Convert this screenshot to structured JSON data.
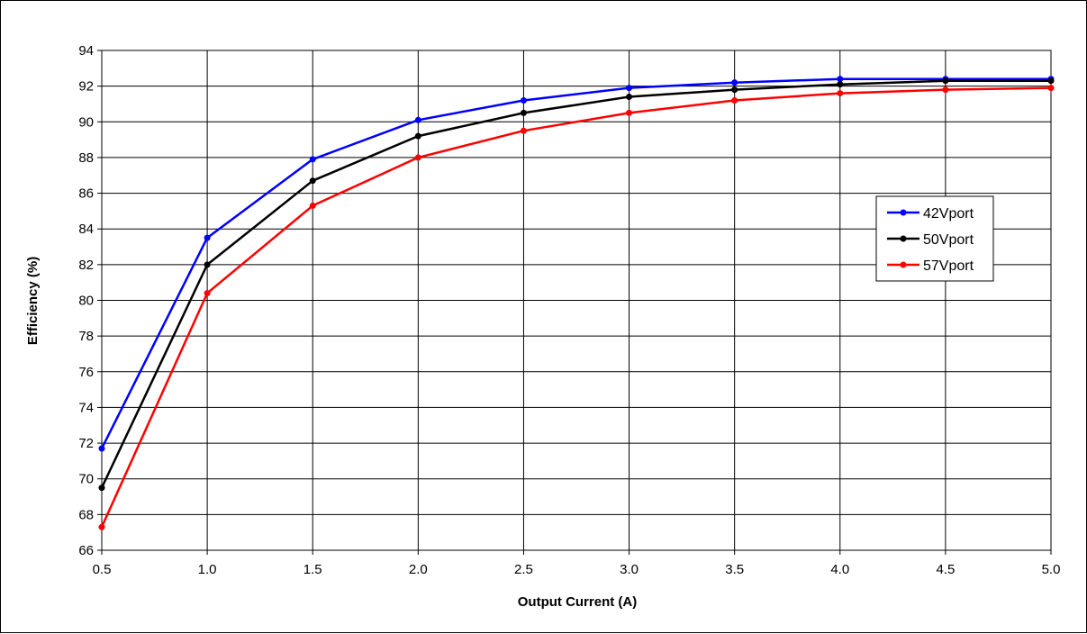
{
  "chart_data": {
    "type": "line",
    "title": "",
    "xlabel": "Output Current (A)",
    "ylabel": "Efficiency (%)",
    "xlim": [
      0.5,
      5.0
    ],
    "ylim": [
      66,
      94
    ],
    "x_ticks": [
      "0.5",
      "1.0",
      "1.5",
      "2.0",
      "2.5",
      "3.0",
      "3.5",
      "4.0",
      "4.5",
      "5.0"
    ],
    "y_ticks": [
      "66",
      "68",
      "70",
      "72",
      "74",
      "76",
      "78",
      "80",
      "82",
      "84",
      "86",
      "88",
      "90",
      "92",
      "94"
    ],
    "grid": true,
    "legend_position": "right",
    "x": [
      0.5,
      1.0,
      1.5,
      2.0,
      2.5,
      3.0,
      3.5,
      4.0,
      4.5,
      5.0
    ],
    "series": [
      {
        "name": "42Vport",
        "color": "#0000ff",
        "values": [
          71.7,
          83.5,
          87.9,
          90.1,
          91.2,
          91.9,
          92.2,
          92.4,
          92.4,
          92.4
        ]
      },
      {
        "name": "50Vport",
        "color": "#000000",
        "values": [
          69.5,
          82.0,
          86.7,
          89.2,
          90.5,
          91.4,
          91.8,
          92.1,
          92.3,
          92.3
        ]
      },
      {
        "name": "57Vport",
        "color": "#ff0000",
        "values": [
          67.3,
          80.4,
          85.3,
          88.0,
          89.5,
          90.5,
          91.2,
          91.6,
          91.8,
          91.9
        ]
      }
    ]
  }
}
